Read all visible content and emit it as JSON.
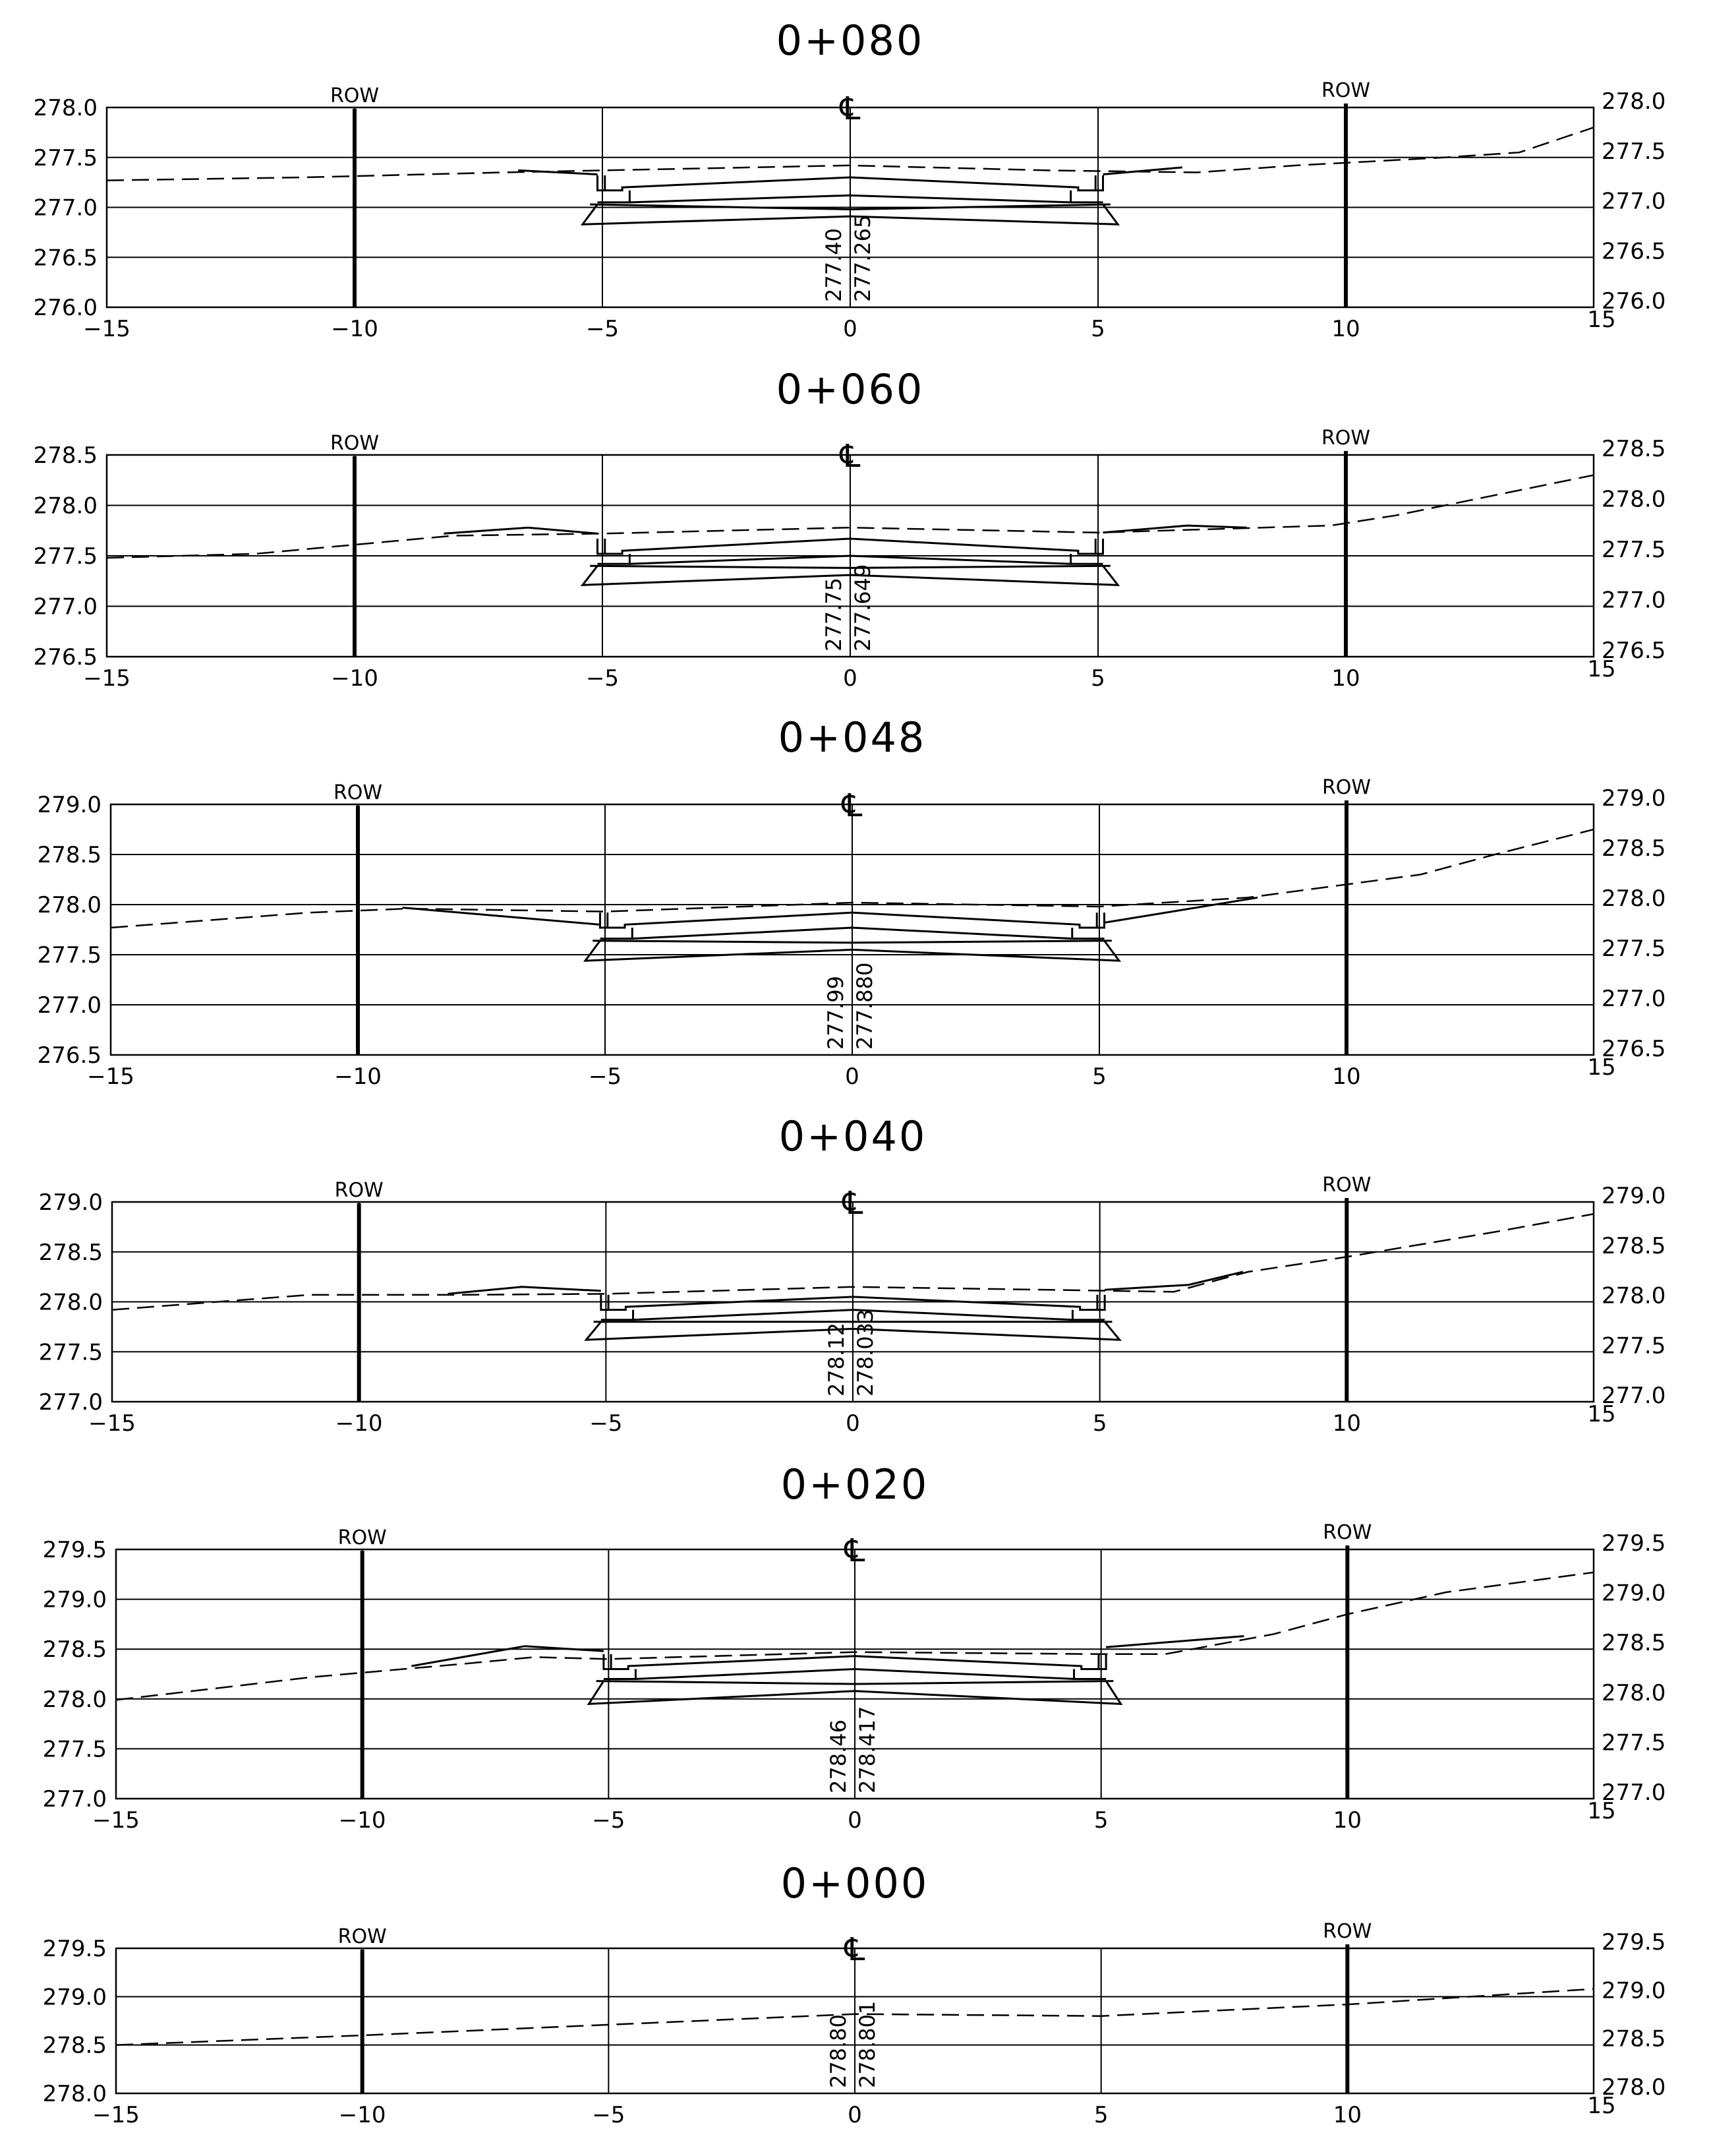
{
  "labels": {
    "row": "ROW",
    "centerline": "℄"
  },
  "chart_data": [
    {
      "type": "line",
      "title": "0+080",
      "x_ticks": [
        "−15",
        "−10",
        "−5",
        "0",
        "5",
        "10",
        "15"
      ],
      "y_ticks": [
        "276.0",
        "276.5",
        "277.0",
        "277.5",
        "278.0"
      ],
      "ylim": [
        276.0,
        278.0
      ],
      "xlim": [
        -15,
        15
      ],
      "grid": true,
      "row_offsets": [
        -10,
        10
      ],
      "cl_labels": [
        "277.40",
        "277.265"
      ],
      "series": [
        {
          "kind": "existing-ground",
          "points": [
            [
              -15,
              277.27
            ],
            [
              -11,
              277.3
            ],
            [
              -7,
              277.35
            ],
            [
              -4,
              277.38
            ],
            [
              0,
              277.42
            ],
            [
              4,
              277.37
            ],
            [
              7,
              277.35
            ],
            [
              9,
              277.42
            ],
            [
              12,
              277.5
            ],
            [
              13.5,
              277.55
            ],
            [
              15,
              277.8
            ]
          ]
        },
        {
          "kind": "design-ground",
          "points": [
            [
              -6.7,
              277.37
            ],
            [
              -5.1,
              277.33
            ]
          ]
        },
        {
          "kind": "design-ground",
          "points": [
            [
              5.1,
              277.33
            ],
            [
              6.7,
              277.4
            ]
          ]
        }
      ],
      "section": {
        "top_cl": 277.3,
        "top_edge": 277.2,
        "bot_cl": 277.12,
        "bot_edge": 277.05,
        "base_cl": 276.93,
        "base_edge": 276.83
      }
    },
    {
      "type": "line",
      "title": "0+060",
      "x_ticks": [
        "−15",
        "−10",
        "−5",
        "0",
        "5",
        "10",
        "15"
      ],
      "y_ticks": [
        "276.5",
        "277.0",
        "277.5",
        "278.0",
        "278.5"
      ],
      "ylim": [
        276.5,
        278.5
      ],
      "xlim": [
        -15,
        15
      ],
      "grid": true,
      "row_offsets": [
        -10,
        10
      ],
      "cl_labels": [
        "277.75",
        "277.649"
      ],
      "series": [
        {
          "kind": "existing-ground",
          "points": [
            [
              -15,
              277.48
            ],
            [
              -12,
              277.52
            ],
            [
              -8,
              277.7
            ],
            [
              -5,
              277.72
            ],
            [
              0,
              277.78
            ],
            [
              5,
              277.73
            ],
            [
              9.7,
              277.8
            ],
            [
              11,
              277.9
            ],
            [
              15,
              278.3
            ]
          ]
        },
        {
          "kind": "design-ground",
          "points": [
            [
              -8.2,
              277.72
            ],
            [
              -6.5,
              277.78
            ],
            [
              -5.1,
              277.72
            ]
          ]
        },
        {
          "kind": "design-ground",
          "points": [
            [
              5.1,
              277.73
            ],
            [
              6.8,
              277.8
            ],
            [
              8,
              277.78
            ]
          ]
        }
      ],
      "section": {
        "top_cl": 277.67,
        "top_edge": 277.55,
        "bot_cl": 277.5,
        "bot_edge": 277.42,
        "base_cl": 277.33,
        "base_edge": 277.21
      }
    },
    {
      "type": "line",
      "title": "0+048",
      "x_ticks": [
        "−15",
        "−10",
        "−5",
        "0",
        "5",
        "10",
        "15"
      ],
      "y_ticks": [
        "276.5",
        "277.0",
        "277.5",
        "278.0",
        "278.5",
        "279.0"
      ],
      "ylim": [
        276.5,
        279.0
      ],
      "xlim": [
        -15,
        15
      ],
      "grid": true,
      "row_offsets": [
        -10,
        10
      ],
      "cl_labels": [
        "277.99",
        "277.880"
      ],
      "series": [
        {
          "kind": "existing-ground",
          "points": [
            [
              -15,
              277.77
            ],
            [
              -11,
              277.92
            ],
            [
              -9,
              277.96
            ],
            [
              -5,
              277.93
            ],
            [
              0,
              278.02
            ],
            [
              5,
              277.98
            ],
            [
              8,
              278.07
            ],
            [
              11.5,
              278.3
            ],
            [
              13,
              278.5
            ],
            [
              15,
              278.75
            ]
          ]
        },
        {
          "kind": "design-ground",
          "points": [
            [
              -9.1,
              277.97
            ],
            [
              -5.1,
              277.8
            ]
          ]
        },
        {
          "kind": "design-ground",
          "points": [
            [
              5.1,
              277.82
            ],
            [
              8.2,
              278.07
            ]
          ]
        }
      ],
      "section": {
        "top_cl": 277.92,
        "top_edge": 277.8,
        "bot_cl": 277.77,
        "bot_edge": 277.66,
        "base_cl": 277.57,
        "base_edge": 277.44
      }
    },
    {
      "type": "line",
      "title": "0+040",
      "x_ticks": [
        "−15",
        "−10",
        "−5",
        "0",
        "5",
        "10",
        "15"
      ],
      "y_ticks": [
        "277.0",
        "277.5",
        "278.0",
        "278.5",
        "279.0"
      ],
      "ylim": [
        277.0,
        279.0
      ],
      "xlim": [
        -15,
        15
      ],
      "grid": true,
      "row_offsets": [
        -10,
        10
      ],
      "cl_labels": [
        "278.12",
        "278.033"
      ],
      "series": [
        {
          "kind": "existing-ground",
          "points": [
            [
              -15,
              277.92
            ],
            [
              -11,
              278.07
            ],
            [
              -8,
              278.07
            ],
            [
              -5,
              278.08
            ],
            [
              0,
              278.15
            ],
            [
              4,
              278.12
            ],
            [
              6.5,
              278.1
            ],
            [
              8,
              278.3
            ],
            [
              10,
              278.45
            ],
            [
              13,
              278.7
            ],
            [
              15,
              278.88
            ]
          ]
        },
        {
          "kind": "design-ground",
          "points": [
            [
              -8.2,
              278.08
            ],
            [
              -6.7,
              278.15
            ],
            [
              -5.1,
              278.11
            ]
          ]
        },
        {
          "kind": "design-ground",
          "points": [
            [
              5.1,
              278.12
            ],
            [
              6.8,
              278.17
            ],
            [
              7.9,
              278.3
            ]
          ]
        }
      ],
      "section": {
        "top_cl": 278.05,
        "top_edge": 277.95,
        "bot_cl": 277.92,
        "bot_edge": 277.82,
        "base_cl": 277.75,
        "base_edge": 277.62
      }
    },
    {
      "type": "line",
      "title": "0+020",
      "x_ticks": [
        "−15",
        "−10",
        "−5",
        "0",
        "5",
        "10",
        "15"
      ],
      "y_ticks": [
        "277.0",
        "277.5",
        "278.0",
        "278.5",
        "279.0",
        "279.5"
      ],
      "ylim": [
        277.0,
        279.5
      ],
      "xlim": [
        -15,
        15
      ],
      "grid": true,
      "row_offsets": [
        -10,
        10
      ],
      "cl_labels": [
        "278.46",
        "278.417"
      ],
      "series": [
        {
          "kind": "existing-ground",
          "points": [
            [
              -15,
              277.99
            ],
            [
              -11,
              278.22
            ],
            [
              -8,
              278.35
            ],
            [
              -6.5,
              278.42
            ],
            [
              -5,
              278.4
            ],
            [
              0,
              278.47
            ],
            [
              5,
              278.45
            ],
            [
              6.3,
              278.45
            ],
            [
              8.5,
              278.65
            ],
            [
              10,
              278.85
            ],
            [
              12,
              279.07
            ],
            [
              15,
              279.27
            ]
          ]
        },
        {
          "kind": "design-ground",
          "points": [
            [
              -9,
              278.33
            ],
            [
              -6.7,
              278.53
            ],
            [
              -5.1,
              278.48
            ]
          ]
        },
        {
          "kind": "design-ground",
          "points": [
            [
              5.1,
              278.52
            ],
            [
              7.9,
              278.63
            ]
          ]
        }
      ],
      "section": {
        "top_cl": 278.43,
        "top_edge": 278.33,
        "bot_cl": 278.3,
        "bot_edge": 278.2,
        "base_cl": 278.1,
        "base_edge": 277.95
      }
    },
    {
      "type": "line",
      "title": "0+000",
      "x_ticks": [
        "−15",
        "−10",
        "−5",
        "0",
        "5",
        "10",
        "15"
      ],
      "y_ticks": [
        "278.0",
        "278.5",
        "279.0",
        "279.5"
      ],
      "ylim": [
        278.0,
        279.5
      ],
      "xlim": [
        -15,
        15
      ],
      "grid": true,
      "row_offsets": [
        -10,
        10
      ],
      "cl_labels": [
        "278.80",
        "278.801"
      ],
      "series": [
        {
          "kind": "existing-ground",
          "points": [
            [
              -15,
              278.5
            ],
            [
              -10,
              278.6
            ],
            [
              -5,
              278.71
            ],
            [
              0,
              278.82
            ],
            [
              5,
              278.8
            ],
            [
              10,
              278.92
            ],
            [
              15,
              279.08
            ]
          ]
        }
      ],
      "section": null
    }
  ]
}
